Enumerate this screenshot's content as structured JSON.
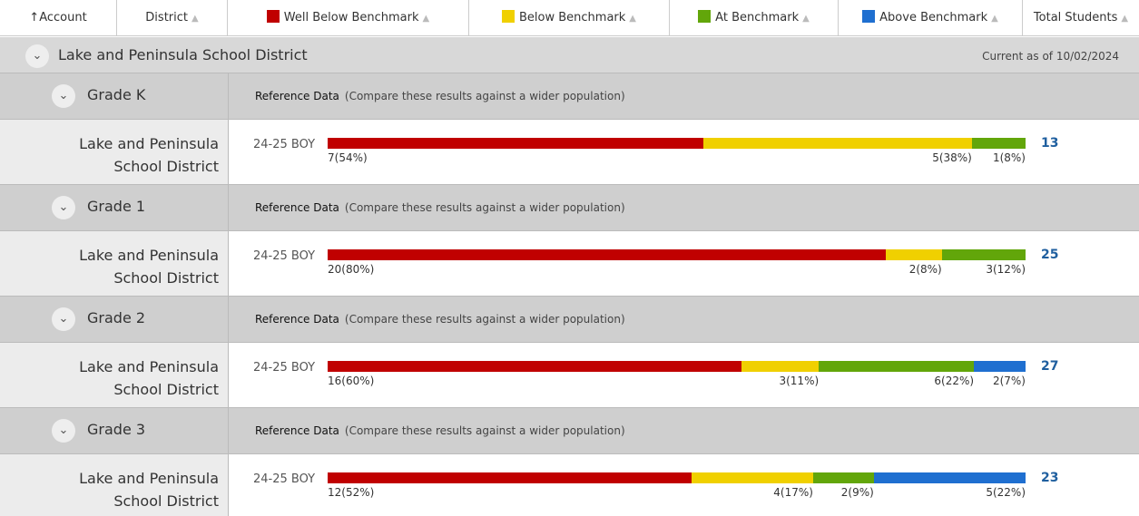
{
  "header": {
    "columns": [
      {
        "label": "Account"
      },
      {
        "label": "District"
      },
      {
        "label": "Well Below Benchmark",
        "color": "#c00000"
      },
      {
        "label": "Below Benchmark",
        "color": "#f0d000"
      },
      {
        "label": "At Benchmark",
        "color": "#62a60a"
      },
      {
        "label": "Above Benchmark",
        "color": "#1f6fd0"
      },
      {
        "label": "Total Students"
      }
    ]
  },
  "district": {
    "name": "Lake and Peninsula School District",
    "current_as_of": "Current as of 10/02/2024"
  },
  "grades": [
    {
      "label": "Grade K",
      "reference_label": "Reference Data",
      "reference_note": "(Compare these results against a wider population)",
      "row_name": "Lake and Peninsula School District",
      "period": "24-25 BOY",
      "total": 13,
      "segments": [
        {
          "count": 7,
          "percent": 54,
          "label": "7(54%)",
          "color": "#c00000"
        },
        {
          "count": 5,
          "percent": 38,
          "label": "5(38%)",
          "color": "#f0d000"
        },
        {
          "count": 1,
          "percent": 8,
          "label": "1(8%)",
          "color": "#62a60a"
        }
      ]
    },
    {
      "label": "Grade 1",
      "reference_label": "Reference Data",
      "reference_note": "(Compare these results against a wider population)",
      "row_name": "Lake and Peninsula School District",
      "period": "24-25 BOY",
      "total": 25,
      "segments": [
        {
          "count": 20,
          "percent": 80,
          "label": "20(80%)",
          "color": "#c00000"
        },
        {
          "count": 2,
          "percent": 8,
          "label": "2(8%)",
          "color": "#f0d000"
        },
        {
          "count": 3,
          "percent": 12,
          "label": "3(12%)",
          "color": "#62a60a"
        }
      ]
    },
    {
      "label": "Grade 2",
      "reference_label": "Reference Data",
      "reference_note": "(Compare these results against a wider population)",
      "row_name": "Lake and Peninsula School District",
      "period": "24-25 BOY",
      "total": 27,
      "segments": [
        {
          "count": 16,
          "percent": 60,
          "label": "16(60%)",
          "color": "#c00000"
        },
        {
          "count": 3,
          "percent": 11,
          "label": "3(11%)",
          "color": "#f0d000"
        },
        {
          "count": 6,
          "percent": 22,
          "label": "6(22%)",
          "color": "#62a60a"
        },
        {
          "count": 2,
          "percent": 7,
          "label": "2(7%)",
          "color": "#1f6fd0"
        }
      ]
    },
    {
      "label": "Grade 3",
      "reference_label": "Reference Data",
      "reference_note": "(Compare these results against a wider population)",
      "row_name": "Lake and Peninsula School District",
      "period": "24-25 BOY",
      "total": 23,
      "segments": [
        {
          "count": 12,
          "percent": 52,
          "label": "12(52%)",
          "color": "#c00000"
        },
        {
          "count": 4,
          "percent": 17,
          "label": "4(17%)",
          "color": "#f0d000"
        },
        {
          "count": 2,
          "percent": 9,
          "label": "2(9%)",
          "color": "#62a60a"
        },
        {
          "count": 5,
          "percent": 22,
          "label": "5(22%)",
          "color": "#1f6fd0"
        }
      ]
    }
  ]
}
